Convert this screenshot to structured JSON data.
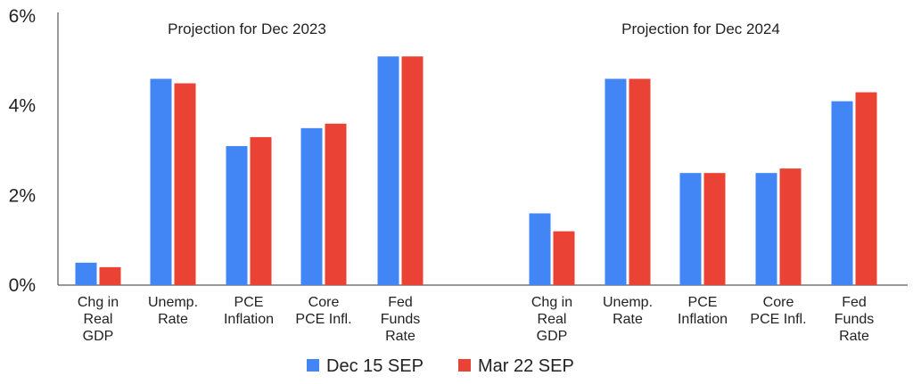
{
  "chart_data": {
    "type": "bar",
    "title": "",
    "xlabel": "",
    "ylabel": "",
    "ylim": [
      0,
      6
    ],
    "y_ticks": [
      "0%",
      "2%",
      "4%",
      "6%"
    ],
    "grid": false,
    "legend_position": "bottom",
    "colors": {
      "Dec 15 SEP": "#4285f4",
      "Mar 22 SEP": "#ea4335"
    },
    "annotations": [
      "Projection for Dec 2023",
      "Projection for Dec 2024"
    ],
    "categories": [
      "Chg in Real GDP",
      "Unemp. Rate",
      "PCE Inflation",
      "Core PCE Infl.",
      "Fed Funds Rate",
      "Chg in Real GDP",
      "Unemp. Rate",
      "PCE Inflation",
      "Core PCE Infl.",
      "Fed Funds Rate"
    ],
    "category_lines": [
      [
        "Chg in",
        "Real",
        "GDP"
      ],
      [
        "Unemp.",
        "Rate"
      ],
      [
        "PCE",
        "Inflation"
      ],
      [
        "Core",
        "PCE Infl."
      ],
      [
        "Fed",
        "Funds",
        "Rate"
      ],
      [
        "Chg in",
        "Real",
        "GDP"
      ],
      [
        "Unemp.",
        "Rate"
      ],
      [
        "PCE",
        "Inflation"
      ],
      [
        "Core",
        "PCE Infl."
      ],
      [
        "Fed",
        "Funds",
        "Rate"
      ]
    ],
    "series": [
      {
        "name": "Dec 15 SEP",
        "values": [
          0.5,
          4.6,
          3.1,
          3.5,
          5.1,
          1.6,
          4.6,
          2.5,
          2.5,
          4.1
        ]
      },
      {
        "name": "Mar 22 SEP",
        "values": [
          0.4,
          4.5,
          3.3,
          3.6,
          5.1,
          1.2,
          4.6,
          2.5,
          2.6,
          4.3
        ]
      }
    ]
  }
}
